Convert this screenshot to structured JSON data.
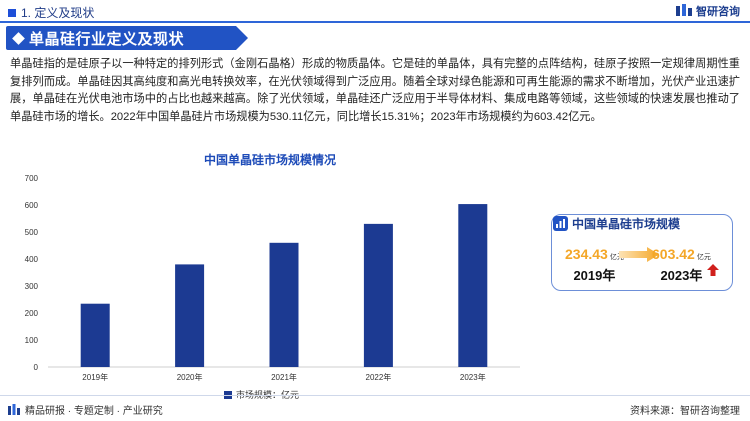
{
  "header": {
    "section": "1. 定义及现状",
    "brand": "智研咨询"
  },
  "title": "单晶硅行业定义及现状",
  "paragraph": "单晶硅指的是硅原子以一种特定的排列形式（金刚石晶格）形成的物质晶体。它是硅的单晶体，具有完整的点阵结构，硅原子按照一定规律周期性重复排列而成。单晶硅因其高纯度和高光电转换效率，在光伏领域得到广泛应用。随着全球对绿色能源和可再生能源的需求不断增加，光伏产业迅速扩展，单晶硅在光伏电池市场中的占比也越来越高。除了光伏领域，单晶硅还广泛应用于半导体材料、集成电路等领域，这些领域的快速发展也推动了单晶硅市场的增长。2022年中国单晶硅片市场规模为530.11亿元，同比增长15.31%；2023年市场规模约为603.42亿元。",
  "chart_data": {
    "type": "bar",
    "title": "中国单晶硅市场规模情况",
    "categories": [
      "2019年",
      "2020年",
      "2021年",
      "2022年",
      "2023年"
    ],
    "series": [
      {
        "name": "市场规模：亿元",
        "values": [
          234.43,
          380,
          460,
          530.11,
          603.42
        ]
      }
    ],
    "yticks": [
      "0",
      "100",
      "200",
      "300",
      "400",
      "500",
      "600",
      "700"
    ],
    "ylim": [
      0,
      700
    ],
    "xlabel": "",
    "ylabel": "",
    "grid": false,
    "legend": "bottom",
    "bar_color": "#1c3a92"
  },
  "side_card": {
    "title": "中国单晶硅市场规模",
    "left_value": "234.43",
    "left_unit": "亿元",
    "left_year": "2019年",
    "right_value": "603.42",
    "right_unit": "亿元",
    "right_year": "2023年",
    "icons": [
      "chart-badge-icon",
      "right-arrow-icon",
      "up-arrow-icon"
    ]
  },
  "footer": {
    "left": "精品研报 · 专题定制 · 产业研究",
    "right": "资料来源：智研咨询整理"
  },
  "colors": {
    "primary": "#2153c4",
    "accent": "#f4a728",
    "bar": "#1c3a92",
    "up": "#d0201c"
  }
}
